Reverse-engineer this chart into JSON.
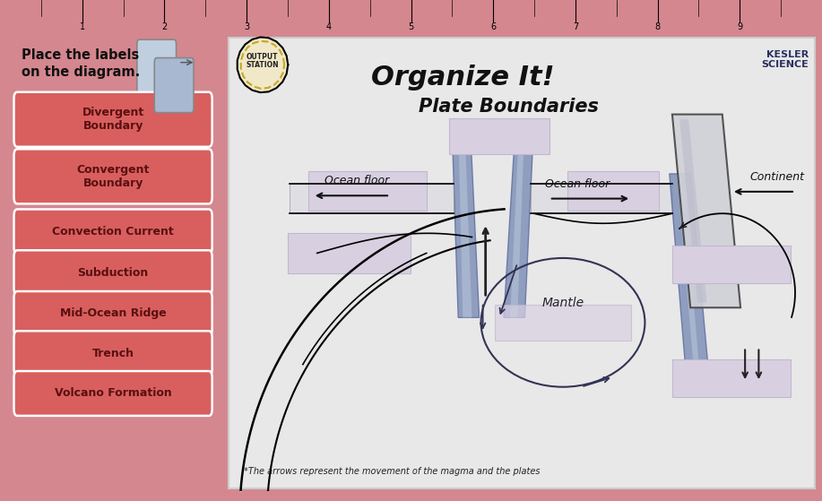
{
  "bg_color": "#d4878f",
  "left_panel_bg": "#d4878f",
  "right_panel_bg": "#e8e8e8",
  "title_text": "Organize It!",
  "subtitle_text": "Plate Boundaries",
  "instruction_text": "Place the labels\non the diagram.",
  "labels": [
    "Divergent\nBoundary",
    "Convergent\nBoundary",
    "Convection Current",
    "Subduction",
    "Mid-Ocean Ridge",
    "Trench",
    "Volcano Formation"
  ],
  "label_box_color": "#d95f5f",
  "label_text_color": "#5a1010",
  "placeholder_color": "#d8d0e0",
  "placeholder_edge": "#c0b8d0",
  "footnote": "*The arrows represent the movement of the magma and the plates",
  "kesler_text": "KESLER\nSCIENCE",
  "output_station_text": "OUTPUT\nSTATION",
  "ruler_color": "#cccccc",
  "diagram_bg": "#e8e8e8",
  "ocean_floor_color": "#e8e8e8",
  "pillar_color_dark": "#8090b8",
  "pillar_color_light": "#b8c4d8",
  "continent_color": "#c8c8cc"
}
